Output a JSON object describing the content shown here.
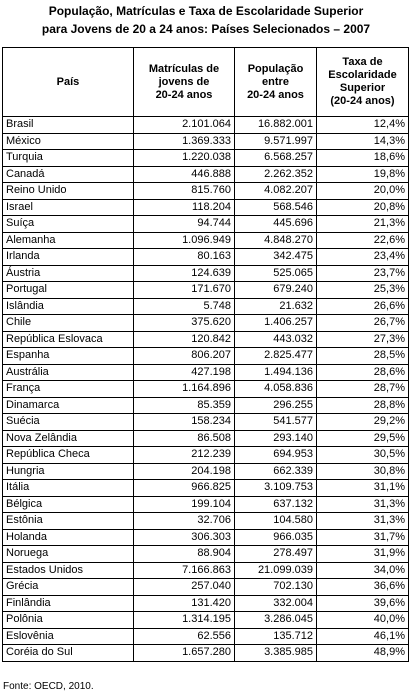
{
  "title_lines": [
    "População, Matrículas e Taxa de Escolaridade Superior",
    "para Jovens de 20 a 24 anos: Países Selecionados – 2007"
  ],
  "table": {
    "header": [
      [
        "País"
      ],
      [
        "Matrículas de",
        "jovens de",
        "20-24 anos"
      ],
      [
        "População",
        "entre",
        "20-24 anos"
      ],
      [
        "Taxa de",
        "Escolaridade",
        "Superior",
        "(20-24 anos)"
      ]
    ],
    "rows": [
      [
        "Brasil",
        "2.101.064",
        "16.882.001",
        "12,4%"
      ],
      [
        "México",
        "1.369.333",
        "9.571.997",
        "14,3%"
      ],
      [
        "Turquia",
        "1.220.038",
        "6.568.257",
        "18,6%"
      ],
      [
        "Canadá",
        "446.888",
        "2.262.352",
        "19,8%"
      ],
      [
        "Reino Unido",
        "815.760",
        "4.082.207",
        "20,0%"
      ],
      [
        "Israel",
        "118.204",
        "568.546",
        "20,8%"
      ],
      [
        "Suíça",
        "94.744",
        "445.696",
        "21,3%"
      ],
      [
        "Alemanha",
        "1.096.949",
        "4.848.270",
        "22,6%"
      ],
      [
        "Irlanda",
        "80.163",
        "342.475",
        "23,4%"
      ],
      [
        "Áustria",
        "124.639",
        "525.065",
        "23,7%"
      ],
      [
        "Portugal",
        "171.670",
        "679.240",
        "25,3%"
      ],
      [
        "Islândia",
        "5.748",
        "21.632",
        "26,6%"
      ],
      [
        "Chile",
        "375.620",
        "1.406.257",
        "26,7%"
      ],
      [
        "República Eslovaca",
        "120.842",
        "443.032",
        "27,3%"
      ],
      [
        "Espanha",
        "806.207",
        "2.825.477",
        "28,5%"
      ],
      [
        "Austrália",
        "427.198",
        "1.494.136",
        "28,6%"
      ],
      [
        "França",
        "1.164.896",
        "4.058.836",
        "28,7%"
      ],
      [
        "Dinamarca",
        "85.359",
        "296.255",
        "28,8%"
      ],
      [
        "Suécia",
        "158.234",
        "541.577",
        "29,2%"
      ],
      [
        "Nova Zelândia",
        "86.508",
        "293.140",
        "29,5%"
      ],
      [
        "República Checa",
        "212.239",
        "694.953",
        "30,5%"
      ],
      [
        "Hungria",
        "204.198",
        "662.339",
        "30,8%"
      ],
      [
        "Itália",
        "966.825",
        "3.109.753",
        "31,1%"
      ],
      [
        "Bélgica",
        "199.104",
        "637.132",
        "31,3%"
      ],
      [
        "Estônia",
        "32.706",
        "104.580",
        "31,3%"
      ],
      [
        "Holanda",
        "306.303",
        "966.035",
        "31,7%"
      ],
      [
        "Noruega",
        "88.904",
        "278.497",
        "31,9%"
      ],
      [
        "Estados Unidos",
        "7.166.863",
        "21.099.039",
        "34,0%"
      ],
      [
        "Grécia",
        "257.040",
        "702.130",
        "36,6%"
      ],
      [
        "Finlândia",
        "131.420",
        "332.004",
        "39,6%"
      ],
      [
        "Polônia",
        "1.314.195",
        "3.286.045",
        "40,0%"
      ],
      [
        "Eslovênia",
        "62.556",
        "135.712",
        "46,1%"
      ],
      [
        "Coréia do Sul",
        "1.657.280",
        "3.385.985",
        "48,9%"
      ]
    ]
  },
  "source": "Fonte: OECD, 2010."
}
